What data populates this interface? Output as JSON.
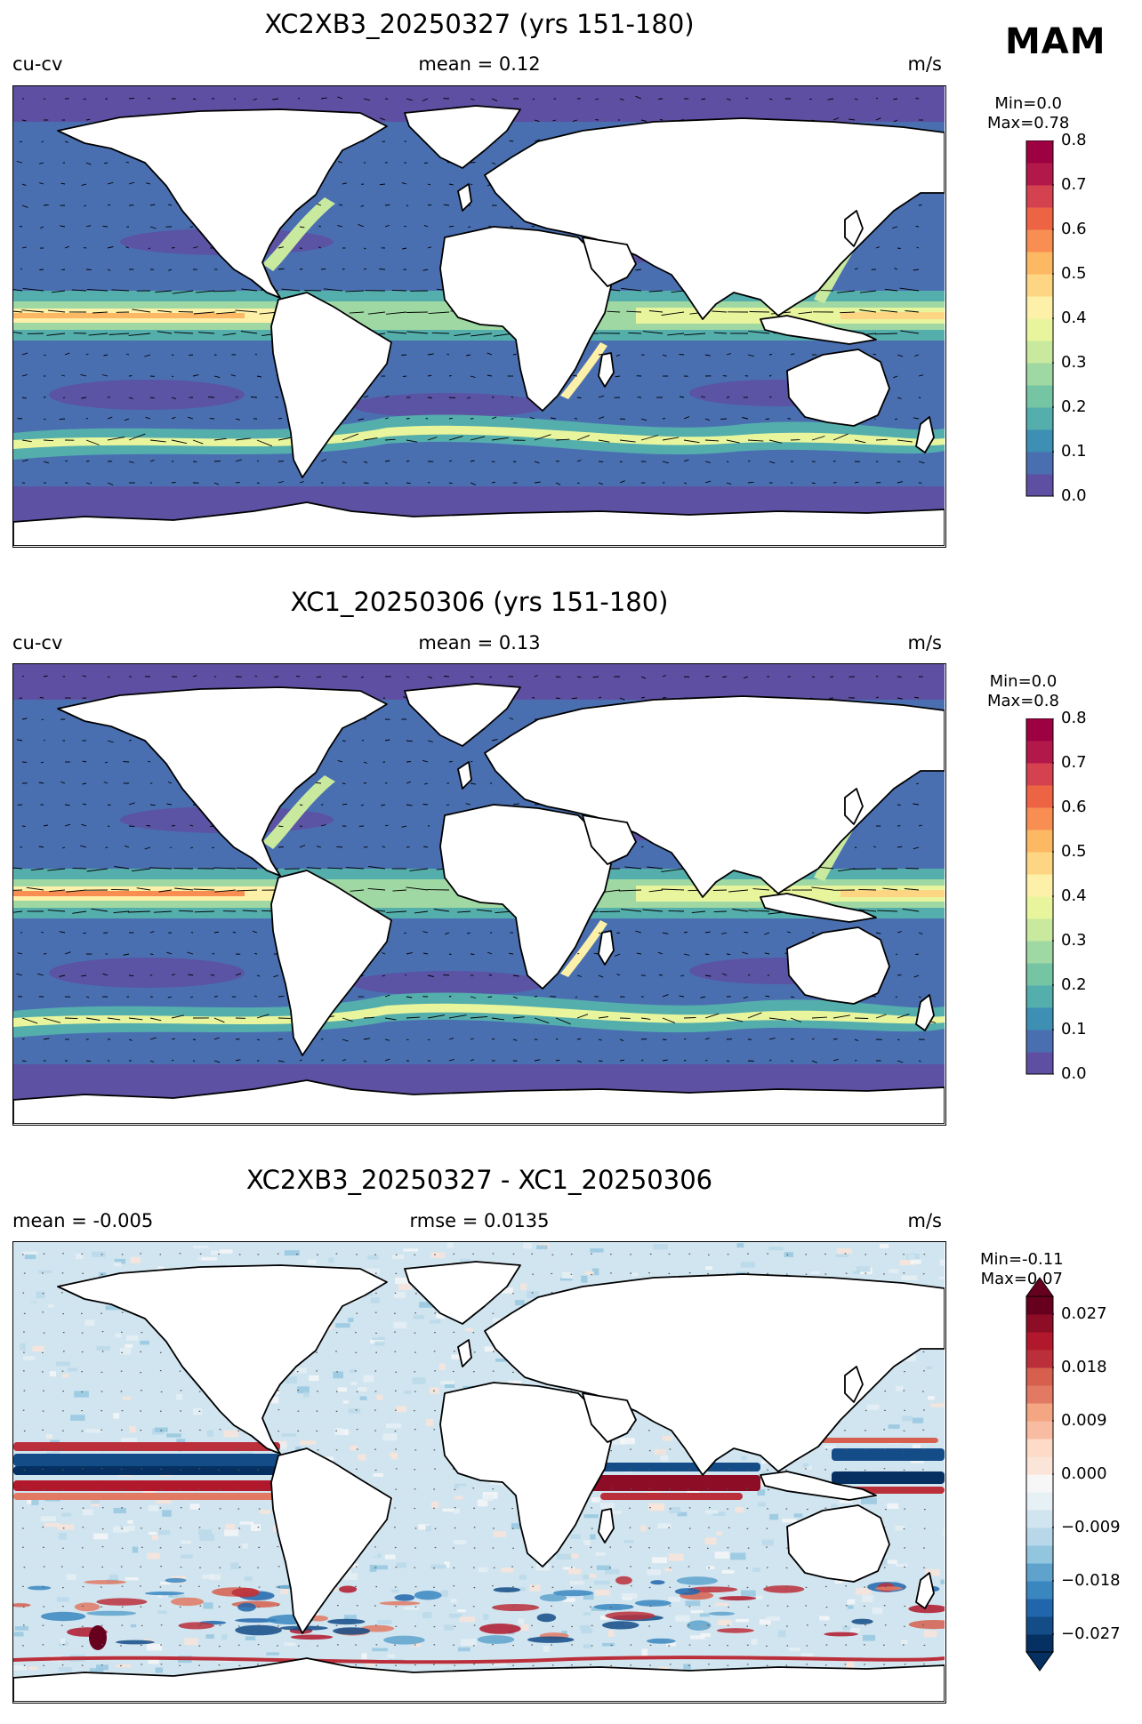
{
  "season": "MAM",
  "panels": [
    {
      "title": "XC2XB3_20250327 (yrs 151-180)",
      "left_label": "cu-cv",
      "center_label": "mean = 0.12",
      "right_label": "m/s",
      "min_label": "Min=0.0",
      "max_label": "Max=0.78",
      "colorbar": {
        "ticks": [
          "0.0",
          "0.1",
          "0.2",
          "0.3",
          "0.4",
          "0.5",
          "0.6",
          "0.7",
          "0.8"
        ],
        "colors": [
          "#5e4fa2",
          "#4a6fb1",
          "#3d8fb4",
          "#54aeac",
          "#75c4a4",
          "#a0d8a4",
          "#c8e99e",
          "#e9f59d",
          "#fdf0a8",
          "#fed683",
          "#fdb863",
          "#f88e52",
          "#ec6444",
          "#d5424f",
          "#b3184a",
          "#9e0142"
        ]
      }
    },
    {
      "title": "XC1_20250306 (yrs 151-180)",
      "left_label": "cu-cv",
      "center_label": "mean = 0.13",
      "right_label": "m/s",
      "min_label": "Min=0.0",
      "max_label": "Max=0.8",
      "colorbar": {
        "ticks": [
          "0.0",
          "0.1",
          "0.2",
          "0.3",
          "0.4",
          "0.5",
          "0.6",
          "0.7",
          "0.8"
        ],
        "colors": [
          "#5e4fa2",
          "#4a6fb1",
          "#3d8fb4",
          "#54aeac",
          "#75c4a4",
          "#a0d8a4",
          "#c8e99e",
          "#e9f59d",
          "#fdf0a8",
          "#fed683",
          "#fdb863",
          "#f88e52",
          "#ec6444",
          "#d5424f",
          "#b3184a",
          "#9e0142"
        ]
      }
    },
    {
      "title": "XC2XB3_20250327 - XC1_20250306",
      "left_label": "mean = -0.005",
      "center_label": "rmse = 0.0135",
      "right_label": "m/s",
      "min_label": "Min=-0.11",
      "max_label": "Max=0.07",
      "colorbar": {
        "ticks": [
          "−0.027",
          "−0.018",
          "−0.009",
          "0.000",
          "0.009",
          "0.018",
          "0.027"
        ],
        "colors": [
          "#053061",
          "#134c87",
          "#2166ac",
          "#3a87bf",
          "#5fa3cd",
          "#92c5de",
          "#b8d8e9",
          "#d1e5f0",
          "#e7f0f5",
          "#f7f7f7",
          "#fbe5d8",
          "#fddbc7",
          "#f8bca2",
          "#f4a582",
          "#e27a63",
          "#d6604d",
          "#bb2f3b",
          "#b2182b",
          "#8c0d25",
          "#67001f"
        ]
      }
    }
  ]
}
